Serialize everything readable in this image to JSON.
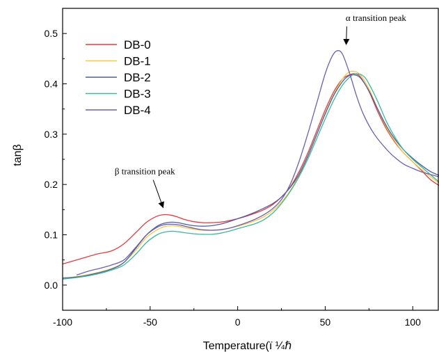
{
  "chart_data": {
    "type": "line",
    "title": "",
    "xlabel": "Temperature(ï ¼ℏ",
    "ylabel": "tanβ",
    "xlim": [
      -100,
      115
    ],
    "ylim": [
      -0.05,
      0.55
    ],
    "xticks": [
      -100,
      -50,
      0,
      50,
      100
    ],
    "yticks": [
      0.0,
      0.1,
      0.2,
      0.3,
      0.4,
      0.5
    ],
    "xtick_labels": [
      "-100",
      "-50",
      "0",
      "50",
      "100"
    ],
    "ytick_labels": [
      "0.0",
      "0.1",
      "0.2",
      "0.3",
      "0.4",
      "0.5"
    ],
    "grid": false,
    "legend_position": "top-left",
    "series": [
      {
        "name": "DB-0",
        "color": "#e8383a",
        "x": [
          -100,
          -90,
          -80,
          -72,
          -65,
          -58,
          -52,
          -46,
          -42,
          -38,
          -34,
          -30,
          -25,
          -20,
          -15,
          -10,
          -5,
          0,
          5,
          10,
          15,
          20,
          25,
          30,
          35,
          40,
          45,
          50,
          55,
          60,
          64,
          67,
          70,
          75,
          80,
          85,
          90,
          95,
          100,
          105,
          110,
          115
        ],
        "y": [
          0.042,
          0.052,
          0.062,
          0.068,
          0.082,
          0.105,
          0.125,
          0.137,
          0.14,
          0.139,
          0.135,
          0.13,
          0.126,
          0.124,
          0.124,
          0.125,
          0.128,
          0.132,
          0.137,
          0.143,
          0.15,
          0.16,
          0.175,
          0.195,
          0.225,
          0.262,
          0.305,
          0.348,
          0.385,
          0.41,
          0.418,
          0.42,
          0.414,
          0.385,
          0.345,
          0.31,
          0.283,
          0.262,
          0.245,
          0.228,
          0.21,
          0.198
        ]
      },
      {
        "name": "DB-1",
        "color": "#f5c842",
        "x": [
          -100,
          -90,
          -80,
          -72,
          -65,
          -58,
          -52,
          -46,
          -42,
          -38,
          -34,
          -30,
          -25,
          -20,
          -15,
          -10,
          -5,
          0,
          5,
          10,
          15,
          20,
          25,
          30,
          35,
          40,
          45,
          50,
          55,
          60,
          63,
          66,
          70,
          75,
          80,
          85,
          90,
          95,
          100,
          105,
          110,
          115
        ],
        "y": [
          0.013,
          0.018,
          0.025,
          0.033,
          0.045,
          0.07,
          0.095,
          0.11,
          0.116,
          0.118,
          0.117,
          0.114,
          0.111,
          0.109,
          0.109,
          0.11,
          0.113,
          0.117,
          0.122,
          0.128,
          0.136,
          0.148,
          0.165,
          0.188,
          0.218,
          0.255,
          0.298,
          0.342,
          0.38,
          0.41,
          0.422,
          0.425,
          0.418,
          0.39,
          0.35,
          0.313,
          0.285,
          0.262,
          0.245,
          0.23,
          0.216,
          0.203
        ]
      },
      {
        "name": "DB-2",
        "color": "#4a5fa6",
        "x": [
          -100,
          -90,
          -80,
          -72,
          -65,
          -58,
          -52,
          -46,
          -42,
          -38,
          -34,
          -30,
          -25,
          -20,
          -15,
          -10,
          -5,
          0,
          5,
          10,
          15,
          20,
          25,
          30,
          35,
          40,
          45,
          50,
          55,
          60,
          63,
          66,
          70,
          75,
          80,
          85,
          90,
          95,
          100,
          105,
          110,
          115
        ],
        "y": [
          0.014,
          0.017,
          0.024,
          0.032,
          0.045,
          0.074,
          0.1,
          0.117,
          0.123,
          0.125,
          0.124,
          0.121,
          0.118,
          0.117,
          0.118,
          0.121,
          0.126,
          0.132,
          0.138,
          0.145,
          0.153,
          0.162,
          0.175,
          0.194,
          0.22,
          0.256,
          0.298,
          0.34,
          0.378,
          0.405,
          0.415,
          0.418,
          0.412,
          0.386,
          0.35,
          0.316,
          0.289,
          0.268,
          0.252,
          0.238,
          0.226,
          0.218
        ]
      },
      {
        "name": "DB-3",
        "color": "#3bb89a",
        "x": [
          -100,
          -90,
          -80,
          -72,
          -65,
          -58,
          -52,
          -46,
          -42,
          -38,
          -34,
          -30,
          -25,
          -20,
          -15,
          -10,
          -5,
          0,
          5,
          10,
          15,
          20,
          25,
          30,
          35,
          40,
          45,
          50,
          55,
          60,
          65,
          68,
          72,
          75,
          80,
          85,
          90,
          95,
          100,
          105,
          110,
          115
        ],
        "y": [
          0.012,
          0.016,
          0.022,
          0.03,
          0.04,
          0.062,
          0.085,
          0.1,
          0.105,
          0.107,
          0.106,
          0.104,
          0.102,
          0.101,
          0.101,
          0.103,
          0.107,
          0.112,
          0.117,
          0.122,
          0.13,
          0.143,
          0.162,
          0.186,
          0.215,
          0.25,
          0.29,
          0.33,
          0.368,
          0.398,
          0.416,
          0.42,
          0.415,
          0.4,
          0.365,
          0.325,
          0.293,
          0.268,
          0.25,
          0.235,
          0.22,
          0.205
        ]
      },
      {
        "name": "DB-4",
        "color": "#6a5fb0",
        "x": [
          -92,
          -85,
          -78,
          -72,
          -65,
          -58,
          -52,
          -46,
          -42,
          -38,
          -34,
          -30,
          -25,
          -20,
          -15,
          -10,
          -5,
          0,
          5,
          10,
          15,
          20,
          25,
          30,
          35,
          40,
          45,
          50,
          54,
          57,
          60,
          64,
          68,
          72,
          78,
          85,
          90,
          95,
          100,
          105,
          110,
          115
        ],
        "y": [
          0.02,
          0.028,
          0.034,
          0.04,
          0.05,
          0.076,
          0.1,
          0.115,
          0.12,
          0.121,
          0.12,
          0.117,
          0.113,
          0.11,
          0.109,
          0.11,
          0.113,
          0.118,
          0.124,
          0.131,
          0.14,
          0.152,
          0.17,
          0.2,
          0.245,
          0.3,
          0.36,
          0.42,
          0.455,
          0.466,
          0.458,
          0.42,
          0.375,
          0.338,
          0.3,
          0.27,
          0.253,
          0.24,
          0.232,
          0.225,
          0.22,
          0.215
        ]
      }
    ],
    "annotations": [
      {
        "text": "α transition peak",
        "x": 79,
        "y": 0.525,
        "arrow_to": [
          58,
          0.467
        ]
      },
      {
        "text": "β transition peak",
        "x": -53,
        "y": 0.22,
        "arrow_to": [
          -41,
          0.143
        ]
      }
    ]
  }
}
